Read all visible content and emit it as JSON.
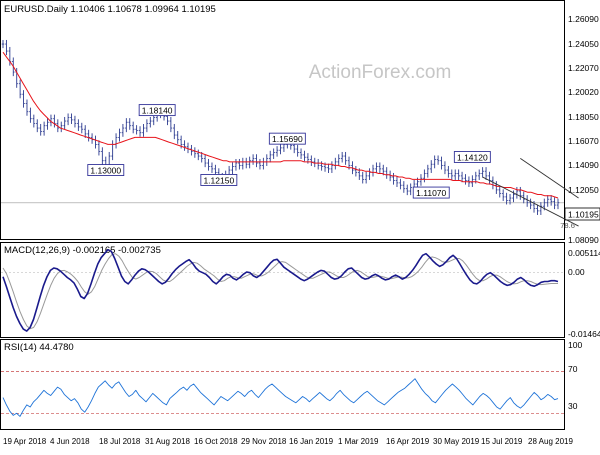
{
  "watermark": "ActionForex.com",
  "colors": {
    "price": "#2b3a8f",
    "ma": "#e8141b",
    "channel": "#333333",
    "macd": "#1a1a8c",
    "signal": "#9a9a9a",
    "rsi": "#1e73d8",
    "rsi_level": "#c74a4a",
    "box_border": "#333399",
    "axis": "#000000"
  },
  "chart_data": [
    {
      "type": "line",
      "title": "EURUSD.Daily  1.10406 1.10678 1.09964 1.10195",
      "ylim": [
        1.0709,
        1.2749
      ],
      "y_ticks": [
        "1.26090",
        "1.24050",
        "1.22070",
        "1.20020",
        "1.18050",
        "1.16070",
        "1.14090",
        "1.12050",
        "1.10195",
        "1.08090"
      ],
      "current_price": 1.10195,
      "x_tick_labels": [
        "19 Apr 2018",
        "4 Jun 2018",
        "18 Jul 2018",
        "31 Aug 2018",
        "16 Oct 2018",
        "29 Nov 2018",
        "16 Jan 2019",
        "1 Mar 2019",
        "16 Apr 2019",
        "30 May 2019",
        "15 Jul 2019",
        "28 Aug 2019"
      ],
      "series": [
        {
          "values": [
            1.238,
            1.232,
            1.223,
            1.214,
            1.204,
            1.195,
            1.187,
            1.18,
            1.174,
            1.17,
            1.166,
            1.163,
            1.168,
            1.171,
            1.174,
            1.17,
            1.166,
            1.168,
            1.172,
            1.175,
            1.173,
            1.17,
            1.167,
            1.165,
            1.161,
            1.158,
            1.156,
            1.152,
            1.146,
            1.138,
            1.131,
            1.142,
            1.152,
            1.158,
            1.162,
            1.166,
            1.171,
            1.168,
            1.165,
            1.164,
            1.162,
            1.166,
            1.17,
            1.172,
            1.175,
            1.178,
            1.18,
            1.176,
            1.172,
            1.166,
            1.16,
            1.156,
            1.152,
            1.15,
            1.148,
            1.146,
            1.144,
            1.142,
            1.14,
            1.136,
            1.133,
            1.131,
            1.128,
            1.124,
            1.122,
            1.126,
            1.13,
            1.133,
            1.136,
            1.134,
            1.137,
            1.135,
            1.138,
            1.14,
            1.136,
            1.134,
            1.137,
            1.14,
            1.143,
            1.145,
            1.147,
            1.149,
            1.152,
            1.154,
            1.151,
            1.148,
            1.145,
            1.143,
            1.141,
            1.139,
            1.137,
            1.136,
            1.134,
            1.133,
            1.132,
            1.131,
            1.134,
            1.137,
            1.14,
            1.142,
            1.138,
            1.134,
            1.13,
            1.128,
            1.125,
            1.122,
            1.125,
            1.128,
            1.131,
            1.133,
            1.131,
            1.129,
            1.126,
            1.124,
            1.121,
            1.119,
            1.117,
            1.114,
            1.112,
            1.115,
            1.118,
            1.12,
            1.123,
            1.127,
            1.131,
            1.135,
            1.139,
            1.138,
            1.134,
            1.13,
            1.127,
            1.125,
            1.127,
            1.125,
            1.123,
            1.121,
            1.119,
            1.122,
            1.125,
            1.127,
            1.129,
            1.125,
            1.121,
            1.117,
            1.113,
            1.11,
            1.107,
            1.104,
            1.106,
            1.109,
            1.112,
            1.108,
            1.105,
            1.102,
            1.1,
            1.097,
            1.095,
            1.099,
            1.102,
            1.105,
            1.103,
            1.1,
            1.102
          ],
          "note": "daily closing prices estimated from the candles"
        },
        {
          "values": [
            1.231,
            1.227,
            1.223,
            1.219,
            1.214,
            1.209,
            1.204,
            1.199,
            1.194,
            1.189,
            1.185,
            1.181,
            1.178,
            1.175,
            1.172,
            1.17,
            1.168,
            1.166,
            1.165,
            1.164,
            1.163,
            1.162,
            1.161,
            1.16,
            1.159,
            1.158,
            1.157,
            1.156,
            1.155,
            1.154,
            1.153,
            1.152,
            1.152,
            1.152,
            1.153,
            1.154,
            1.155,
            1.156,
            1.157,
            1.158,
            1.158,
            1.158,
            1.158,
            1.158,
            1.158,
            1.158,
            1.157,
            1.156,
            1.155,
            1.154,
            1.153,
            1.152,
            1.151,
            1.15,
            1.149,
            1.148,
            1.147,
            1.146,
            1.145,
            1.144,
            1.143,
            1.142,
            1.141,
            1.14,
            1.139,
            1.138,
            1.138,
            1.137,
            1.137,
            1.137,
            1.137,
            1.137,
            1.137,
            1.137,
            1.137,
            1.137,
            1.137,
            1.137,
            1.137,
            1.137,
            1.137,
            1.137,
            1.137,
            1.138,
            1.138,
            1.138,
            1.138,
            1.138,
            1.138,
            1.137,
            1.137,
            1.137,
            1.136,
            1.136,
            1.136,
            1.135,
            1.135,
            1.135,
            1.134,
            1.134,
            1.133,
            1.133,
            1.132,
            1.132,
            1.131,
            1.13,
            1.13,
            1.129,
            1.129,
            1.128,
            1.128,
            1.127,
            1.127,
            1.126,
            1.126,
            1.125,
            1.125,
            1.124,
            1.124,
            1.123,
            1.123,
            1.122,
            1.122,
            1.122,
            1.122,
            1.122,
            1.122,
            1.122,
            1.122,
            1.122,
            1.122,
            1.122,
            1.122,
            1.121,
            1.121,
            1.121,
            1.12,
            1.12,
            1.12,
            1.12,
            1.12,
            1.119,
            1.119,
            1.118,
            1.118,
            1.117,
            1.116,
            1.116,
            1.115,
            1.115,
            1.115,
            1.114,
            1.113,
            1.113,
            1.112,
            1.111,
            1.111,
            1.11,
            1.109,
            1.109,
            1.108,
            1.108,
            1.108,
            1.107,
            1.106
          ],
          "note": "moving average"
        }
      ],
      "channel_lines": [
        {
          "x": [
            151,
            168
          ],
          "y": [
            1.14,
            1.106
          ]
        },
        {
          "x": [
            140,
            168
          ],
          "y": [
            1.124,
            1.082
          ]
        }
      ],
      "annotations": [
        {
          "label": "1.18140",
          "x": 45,
          "y": 1.1814
        },
        {
          "label": "1.13000",
          "x": 30,
          "y": 1.13
        },
        {
          "label": "1.15690",
          "x": 83,
          "y": 1.1569
        },
        {
          "label": "1.12150",
          "x": 63,
          "y": 1.1215
        },
        {
          "label": "1.14120",
          "x": 137,
          "y": 1.1412
        },
        {
          "label": "1.11070",
          "x": 125,
          "y": 1.1107
        },
        {
          "label": "78.6",
          "x": 165,
          "y": 1.083
        }
      ]
    },
    {
      "type": "line",
      "title": "MACD(12,26,9) -0.002165 -0.002735",
      "ylim": [
        -0.0162,
        0.0075
      ],
      "y_ticks": [
        "0.005114",
        "0.00",
        "-0.014647"
      ],
      "series": [
        {
          "values": [
            -0.001,
            -0.0035,
            -0.0062,
            -0.0088,
            -0.011,
            -0.0128,
            -0.0142,
            -0.0147,
            -0.0138,
            -0.0118,
            -0.009,
            -0.006,
            -0.0032,
            -0.001,
            0.0006,
            0.0012,
            0.001,
            0.0004,
            -0.0004,
            -0.0012,
            -0.0018,
            -0.0026,
            -0.0042,
            -0.006,
            -0.0065,
            -0.0052,
            -0.0028,
            -0.0002,
            0.0022,
            0.0038,
            0.0048,
            0.0058,
            0.0054,
            0.0036,
            0.0014,
            -0.0008,
            -0.0022,
            -0.0028,
            -0.0018,
            -0.0006,
            0.0004,
            0.001,
            0.0008,
            0.0002,
            -0.0006,
            -0.0014,
            -0.0022,
            -0.0028,
            -0.0024,
            -0.0014,
            -0.0002,
            0.0008,
            0.0016,
            0.0022,
            0.0028,
            0.0033,
            0.0024,
            0.0012,
            0.0004,
            0.0,
            -0.0004,
            -0.0012,
            -0.0022,
            -0.0028,
            -0.002,
            -0.001,
            -0.0004,
            -0.0006,
            -0.0014,
            -0.0018,
            -0.0012,
            -0.0004,
            0.0002,
            0.0,
            -0.0008,
            -0.0012,
            -0.0006,
            0.0004,
            0.0014,
            0.0024,
            0.0032,
            0.0034,
            0.0024,
            0.0014,
            0.0008,
            0.0002,
            -0.0004,
            -0.001,
            -0.0016,
            -0.002,
            -0.0016,
            -0.001,
            -0.0004,
            0.0002,
            0.0006,
            0.0004,
            -0.0004,
            -0.0012,
            -0.0016,
            -0.0014,
            -0.0008,
            0.0002,
            0.001,
            0.0012,
            0.0004,
            -0.0004,
            -0.0012,
            -0.0016,
            -0.0014,
            -0.0008,
            -0.0004,
            -0.0008,
            -0.0014,
            -0.0018,
            -0.0016,
            -0.001,
            -0.0006,
            -0.001,
            -0.0016,
            -0.0012,
            -0.0004,
            0.0006,
            0.0018,
            0.0032,
            0.0044,
            0.0048,
            0.004,
            0.003,
            0.0022,
            0.0016,
            0.002,
            0.0028,
            0.0038,
            0.0044,
            0.0036,
            0.0022,
            0.0008,
            -0.0006,
            -0.0018,
            -0.0026,
            -0.0028,
            -0.0022,
            -0.0012,
            -0.0004,
            0.0,
            -0.0006,
            -0.0014,
            -0.0022,
            -0.0028,
            -0.0032,
            -0.003,
            -0.0024,
            -0.0016,
            -0.0012,
            -0.0018,
            -0.0026,
            -0.0032,
            -0.0034,
            -0.003,
            -0.0024,
            -0.0022,
            -0.0022,
            -0.002,
            -0.002,
            -0.0022
          ],
          "note": "MACD line"
        },
        {
          "values": [
            0.0012,
            -0.0002,
            -0.0024,
            -0.0048,
            -0.0074,
            -0.0098,
            -0.0118,
            -0.0134,
            -0.0141,
            -0.0138,
            -0.0124,
            -0.0102,
            -0.0078,
            -0.0054,
            -0.0032,
            -0.0014,
            -0.0002,
            0.0005,
            0.0006,
            0.0002,
            -0.0004,
            -0.0012,
            -0.0022,
            -0.0036,
            -0.0048,
            -0.0054,
            -0.0048,
            -0.0034,
            -0.0014,
            0.0006,
            0.0022,
            0.0036,
            0.0046,
            0.0048,
            0.0042,
            0.003,
            0.0014,
            0.0,
            -0.0012,
            -0.0016,
            -0.0012,
            -0.0006,
            0.0,
            0.0004,
            0.0003,
            -0.0002,
            -0.001,
            -0.0018,
            -0.0022,
            -0.0022,
            -0.0016,
            -0.0008,
            0.0,
            0.0008,
            0.0016,
            0.0022,
            0.0026,
            0.0024,
            0.0018,
            0.001,
            0.0004,
            -0.0002,
            -0.0008,
            -0.0016,
            -0.0022,
            -0.002,
            -0.0014,
            -0.001,
            -0.001,
            -0.0013,
            -0.0014,
            -0.001,
            -0.0006,
            -0.0002,
            -0.0004,
            -0.0008,
            -0.0008,
            -0.0004,
            0.0002,
            0.001,
            0.0018,
            0.0026,
            0.0028,
            0.0026,
            0.002,
            0.0014,
            0.0008,
            0.0002,
            -0.0004,
            -0.001,
            -0.0014,
            -0.0014,
            -0.001,
            -0.0006,
            -0.0002,
            0.0002,
            0.0002,
            -0.0003,
            -0.0008,
            -0.0012,
            -0.0012,
            -0.0008,
            -0.0002,
            0.0004,
            0.0006,
            0.0003,
            -0.0003,
            -0.0009,
            -0.0012,
            -0.0011,
            -0.0009,
            -0.0009,
            -0.0011,
            -0.0014,
            -0.0015,
            -0.0013,
            -0.0011,
            -0.0011,
            -0.0013,
            -0.0013,
            -0.001,
            -0.0004,
            0.0004,
            0.0014,
            0.0026,
            0.0036,
            0.004,
            0.0038,
            0.0034,
            0.0028,
            0.0026,
            0.0028,
            0.0032,
            0.0036,
            0.0036,
            0.003,
            0.002,
            0.0008,
            -0.0004,
            -0.0014,
            -0.002,
            -0.002,
            -0.0016,
            -0.001,
            -0.0006,
            -0.0006,
            -0.001,
            -0.0016,
            -0.0022,
            -0.0026,
            -0.0028,
            -0.0027,
            -0.0023,
            -0.002,
            -0.002,
            -0.0022,
            -0.0026,
            -0.0029,
            -0.003,
            -0.0029,
            -0.0028,
            -0.0027,
            -0.0027,
            -0.0027
          ],
          "note": "signal line"
        }
      ]
    },
    {
      "type": "line",
      "title": "RSI(14) 44.4780",
      "ylim": [
        15,
        100
      ],
      "y_ticks": [
        "100",
        "70",
        "30"
      ],
      "levels": [
        70,
        30
      ],
      "series": [
        {
          "values": [
            45,
            38,
            32,
            28,
            30,
            27,
            33,
            38,
            36,
            41,
            44,
            48,
            52,
            49,
            47,
            51,
            55,
            53,
            48,
            45,
            42,
            44,
            40,
            34,
            31,
            36,
            42,
            49,
            55,
            58,
            61,
            57,
            54,
            58,
            60,
            55,
            50,
            46,
            48,
            52,
            47,
            44,
            41,
            45,
            49,
            46,
            43,
            40,
            38,
            44,
            47,
            50,
            53,
            55,
            52,
            56,
            58,
            54,
            50,
            47,
            44,
            41,
            38,
            42,
            46,
            44,
            42,
            45,
            48,
            51,
            49,
            46,
            50,
            52,
            48,
            45,
            49,
            53,
            56,
            58,
            55,
            52,
            49,
            46,
            44,
            42,
            40,
            43,
            46,
            44,
            41,
            44,
            47,
            50,
            47,
            44,
            42,
            45,
            49,
            52,
            48,
            45,
            42,
            40,
            43,
            46,
            49,
            51,
            48,
            45,
            42,
            40,
            38,
            41,
            44,
            47,
            50,
            52,
            54,
            57,
            60,
            63,
            58,
            53,
            49,
            46,
            42,
            40,
            44,
            48,
            52,
            55,
            58,
            55,
            52,
            48,
            44,
            41,
            38,
            42,
            46,
            49,
            47,
            44,
            40,
            36,
            34,
            38,
            42,
            45,
            40,
            37,
            35,
            38,
            42,
            46,
            50,
            47,
            43,
            45,
            48,
            46,
            43,
            44
          ],
          "note": "RSI line"
        }
      ]
    }
  ]
}
